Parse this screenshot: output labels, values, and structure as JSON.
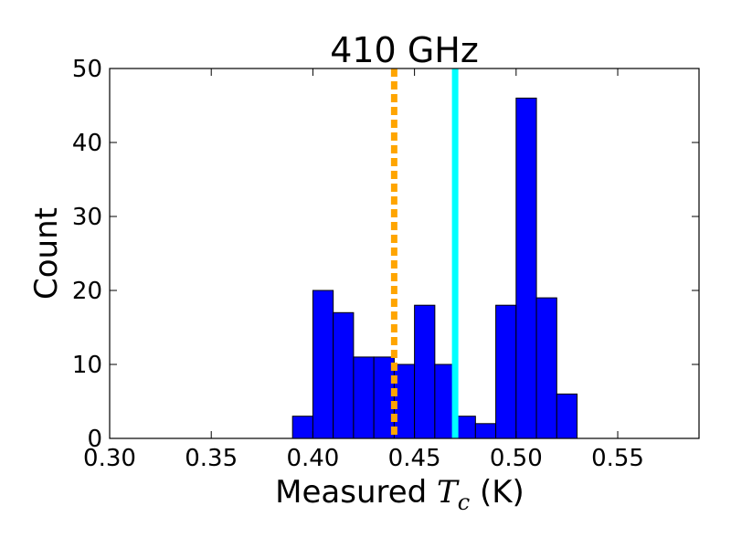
{
  "chart_data": {
    "type": "bar",
    "title": "410 GHz",
    "xlabel_prefix": "Measured ",
    "xlabel_var": "T",
    "xlabel_sub": "c",
    "xlabel_suffix": " (K)",
    "ylabel": "Count",
    "xlim": [
      0.3,
      0.59
    ],
    "ylim": [
      0,
      50
    ],
    "xticks": [
      "0.30",
      "0.35",
      "0.40",
      "0.45",
      "0.50",
      "0.55"
    ],
    "xtick_values": [
      0.3,
      0.35,
      0.4,
      0.45,
      0.5,
      0.55
    ],
    "yticks": [
      "0",
      "10",
      "20",
      "30",
      "40",
      "50"
    ],
    "ytick_values": [
      0,
      10,
      20,
      30,
      40,
      50
    ],
    "bin_width": 0.01,
    "bin_starts": [
      0.39,
      0.4,
      0.41,
      0.42,
      0.43,
      0.44,
      0.45,
      0.46,
      0.47,
      0.48,
      0.49,
      0.5,
      0.51,
      0.52
    ],
    "values": [
      3,
      20,
      17,
      11,
      11,
      10,
      18,
      10,
      3,
      2,
      18,
      46,
      19,
      6
    ],
    "vlines": [
      {
        "x": 0.44,
        "color": "#ffa500",
        "style": "dashed"
      },
      {
        "x": 0.47,
        "color": "#00ffff",
        "style": "solid"
      }
    ],
    "bar_color": "#0000ff",
    "grid": false
  }
}
